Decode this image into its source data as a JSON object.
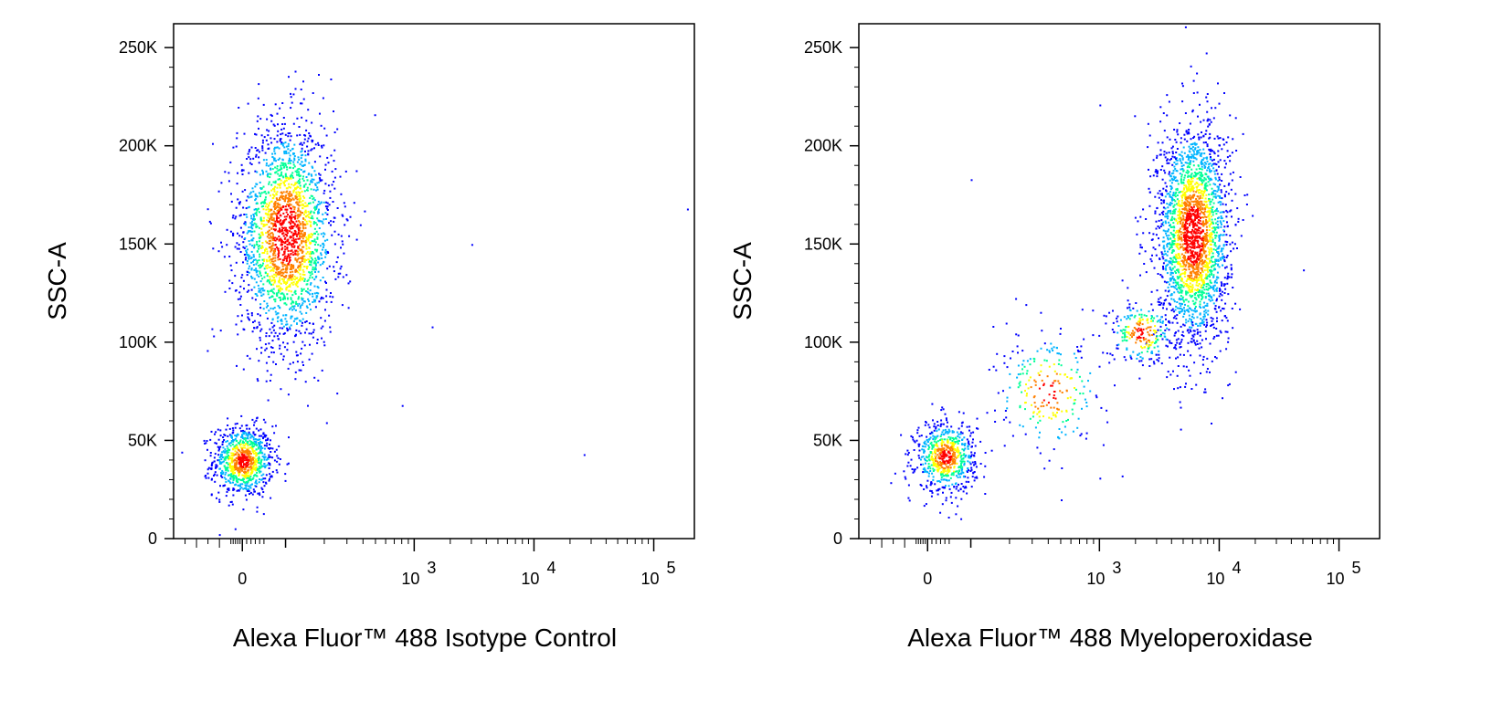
{
  "chart_data": [
    {
      "type": "scatter",
      "subtype": "flow-cytometry-density-dot-plot",
      "title": "",
      "xlabel": "Alexa Fluor™ 488 Isotype Control",
      "ylabel": "SSC-A",
      "x_scale": "biexponential",
      "y_scale": "linear",
      "ylim": [
        0,
        262144
      ],
      "y_ticks": [
        {
          "value": 0,
          "label": "0"
        },
        {
          "value": 50000,
          "label": "50K"
        },
        {
          "value": 100000,
          "label": "100K"
        },
        {
          "value": 150000,
          "label": "150K"
        },
        {
          "value": 200000,
          "label": "200K"
        },
        {
          "value": 250000,
          "label": "250K"
        }
      ],
      "x_ticks": [
        {
          "value": 0,
          "base": "0",
          "exp": ""
        },
        {
          "value": 1000,
          "base": "10",
          "exp": "3"
        },
        {
          "value": 10000,
          "base": "10",
          "exp": "4"
        },
        {
          "value": 100000,
          "base": "10",
          "exp": "5"
        }
      ],
      "color_scale": [
        "#0000ff",
        "#00b4ff",
        "#00ff96",
        "#ffff00",
        "#ff8000",
        "#ff0000"
      ],
      "populations": [
        {
          "x_center": 0,
          "y_center": 40000,
          "x_sd": 35,
          "y_sd": 9000,
          "count": 900
        },
        {
          "x_center": 100,
          "y_center": 155000,
          "x_sd": 55,
          "y_sd": 28000,
          "count": 2200
        }
      ],
      "outliers": [
        {
          "x": 220000,
          "y": 168000
        },
        {
          "x": 3000,
          "y": 150000
        },
        {
          "x": 26000,
          "y": 43000
        },
        {
          "x": 1400,
          "y": 108000
        },
        {
          "x": 800,
          "y": 68000
        }
      ]
    },
    {
      "type": "scatter",
      "subtype": "flow-cytometry-density-dot-plot",
      "title": "",
      "xlabel": "Alexa Fluor™ 488 Myeloperoxidase",
      "ylabel": "SSC-A",
      "x_scale": "biexponential",
      "y_scale": "linear",
      "ylim": [
        0,
        262144
      ],
      "y_ticks": [
        {
          "value": 0,
          "label": "0"
        },
        {
          "value": 50000,
          "label": "50K"
        },
        {
          "value": 100000,
          "label": "100K"
        },
        {
          "value": 150000,
          "label": "150K"
        },
        {
          "value": 200000,
          "label": "200K"
        },
        {
          "value": 250000,
          "label": "250K"
        }
      ],
      "x_ticks": [
        {
          "value": 0,
          "base": "0",
          "exp": ""
        },
        {
          "value": 1000,
          "base": "10",
          "exp": "3"
        },
        {
          "value": 10000,
          "base": "10",
          "exp": "4"
        },
        {
          "value": 100000,
          "base": "10",
          "exp": "5"
        }
      ],
      "color_scale": [
        "#0000ff",
        "#00b4ff",
        "#00ff96",
        "#ffff00",
        "#ff8000",
        "#ff0000"
      ],
      "populations": [
        {
          "x_center": 40,
          "y_center": 42000,
          "x_sd": 35,
          "y_sd": 9000,
          "count": 700
        },
        {
          "x_center": 6000,
          "y_center": 155000,
          "x_sd": 2500,
          "y_sd": 28000,
          "count": 2400
        },
        {
          "x_center": 2200,
          "y_center": 105000,
          "x_sd": 800,
          "y_sd": 8000,
          "count": 250
        },
        {
          "x_center": 400,
          "y_center": 75000,
          "x_sd": 250,
          "y_sd": 15000,
          "count": 250
        }
      ],
      "outliers": [
        {
          "x": 50000,
          "y": 137000
        },
        {
          "x": 100,
          "y": 183000
        },
        {
          "x": 1000,
          "y": 221000
        },
        {
          "x": 500,
          "y": 20000
        },
        {
          "x": 1000,
          "y": 31000
        }
      ]
    }
  ]
}
